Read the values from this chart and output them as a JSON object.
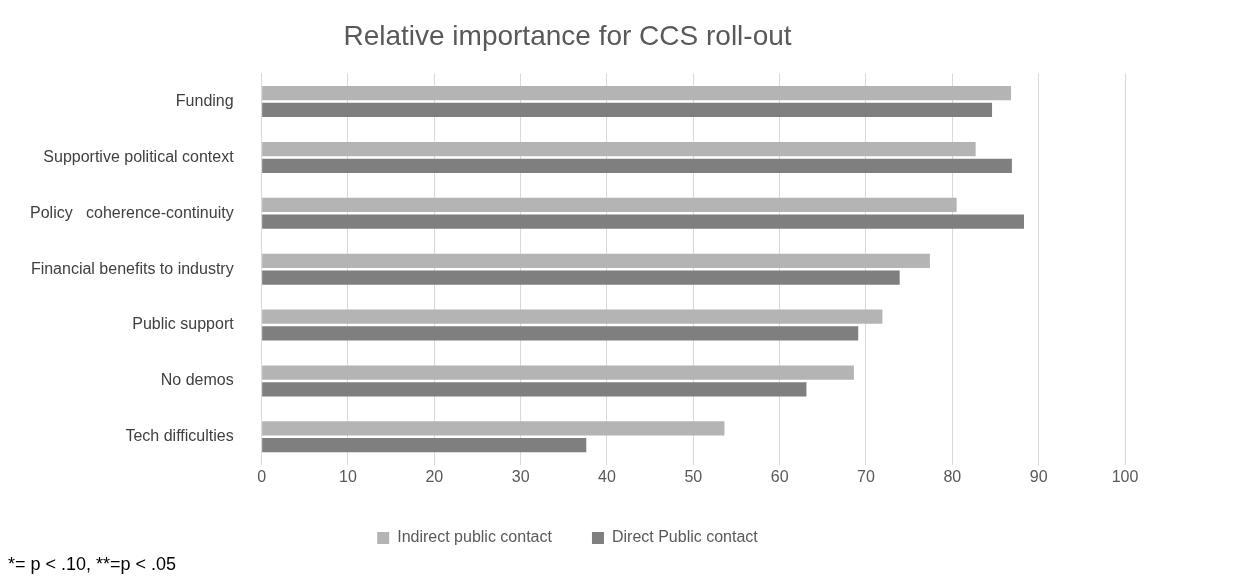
{
  "chart_data": {
    "type": "bar",
    "orientation": "horizontal",
    "title": "Relative importance for CCS roll-out",
    "categories": [
      "Funding",
      "Supportive political context",
      "Policy   coherence-continuity",
      "Financial benefits to industry",
      "Public support",
      "No demos",
      "Tech difficulties"
    ],
    "series": [
      {
        "name": "Indirect public contact",
        "color": "#b4b4b4",
        "values": [
          86.8,
          82.7,
          80.5,
          77.4,
          71.9,
          68.6,
          53.6
        ]
      },
      {
        "name": "Direct Public contact",
        "color": "#7f7f7f",
        "values": [
          84.6,
          86.9,
          88.3,
          73.9,
          69.1,
          63.1,
          37.6
        ]
      }
    ],
    "xlim": [
      0,
      100
    ],
    "xticks": [
      0,
      10,
      20,
      30,
      40,
      50,
      60,
      70,
      80,
      90,
      100
    ],
    "grid": "x",
    "legend": "bottom",
    "annotations": [
      "*= p < .10, **=p < .05"
    ]
  }
}
